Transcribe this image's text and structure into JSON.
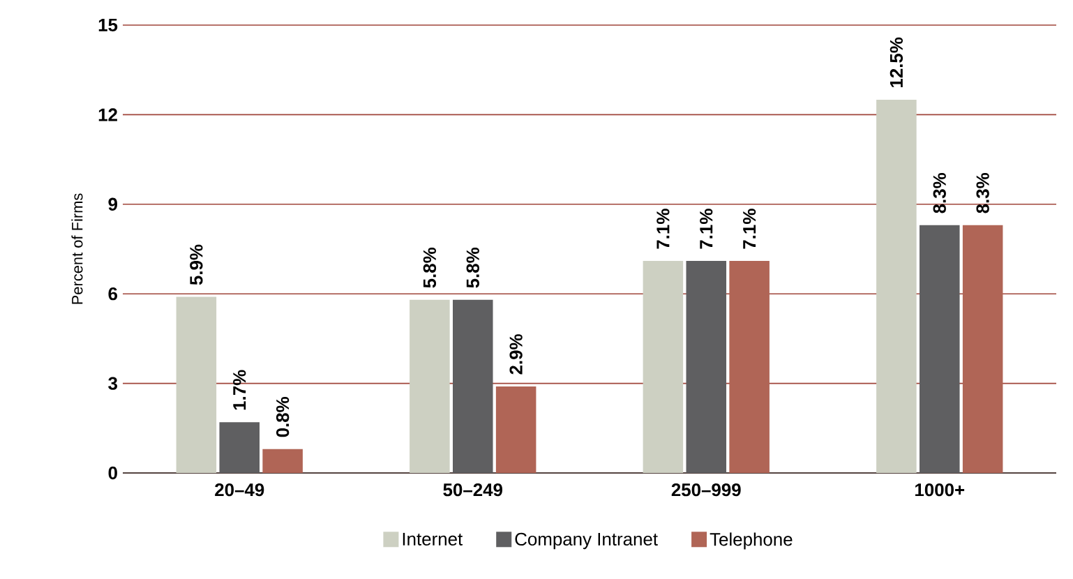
{
  "chart_data": {
    "type": "bar",
    "ylabel": "Percent of Firms",
    "categories": [
      "20–49",
      "50–249",
      "250–999",
      "1000+"
    ],
    "series": [
      {
        "name": "Internet",
        "color": "#cdd0c2",
        "values": [
          5.9,
          5.8,
          7.1,
          12.5
        ],
        "value_labels": [
          "5.9%",
          "5.8%",
          "7.1%",
          "12.5%"
        ]
      },
      {
        "name": "Company Intranet",
        "color": "#5f5f61",
        "values": [
          1.7,
          5.8,
          7.1,
          8.3
        ],
        "value_labels": [
          "1.7%",
          "5.8%",
          "7.1%",
          "8.3%"
        ]
      },
      {
        "name": "Telephone",
        "color": "#b06556",
        "values": [
          0.8,
          2.9,
          7.1,
          8.3
        ],
        "value_labels": [
          "0.8%",
          "2.9%",
          "7.1%",
          "8.3%"
        ]
      }
    ],
    "ylim": [
      0,
      15
    ],
    "yticks": [
      0,
      3,
      6,
      9,
      12,
      15
    ],
    "grid": "y",
    "legend": "bottom"
  }
}
